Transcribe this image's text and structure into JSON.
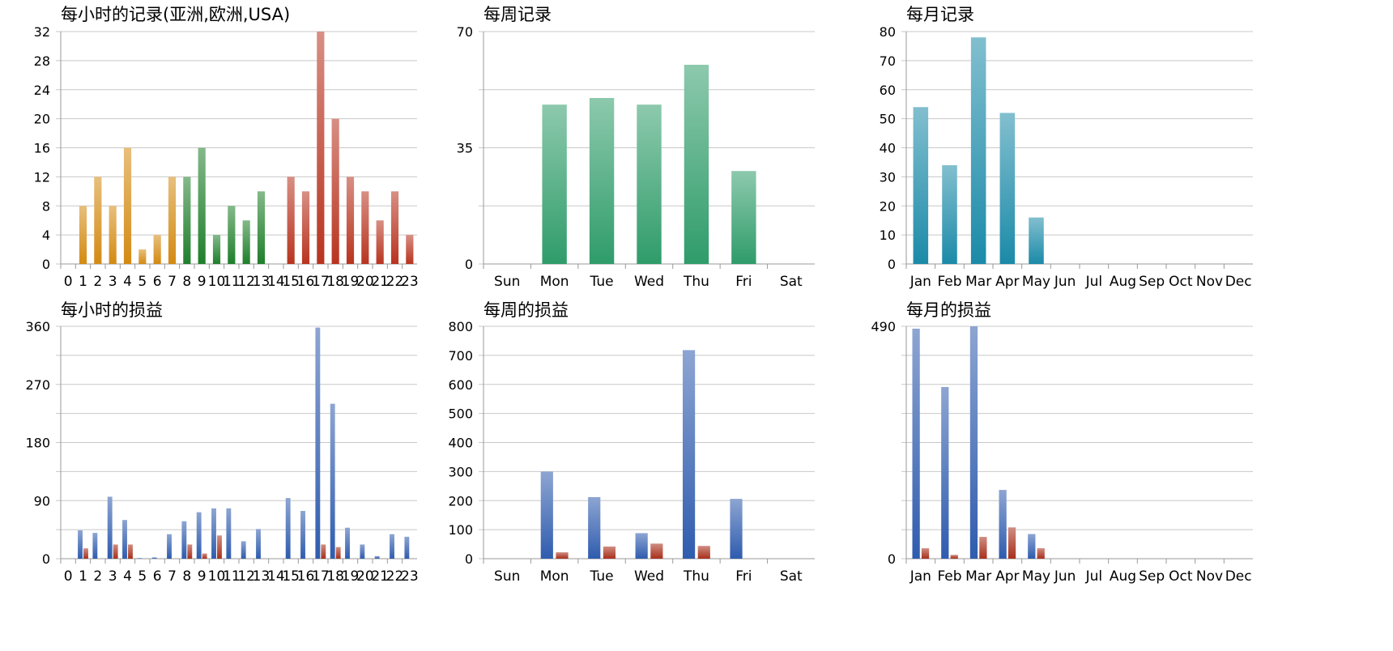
{
  "colors": {
    "orange": "#d38a12",
    "green": "#1f7f2b",
    "red": "#b8341f",
    "teal": "#2f9c6a",
    "cyan": "#1b8aa8",
    "blue": "#2f5cae",
    "dark_red": "#a8301c",
    "grid": "#c8c8c8",
    "axis": "#9a9a9a"
  },
  "chart_data": [
    {
      "type": "bar",
      "title": "每小时的记录(亚洲,欧洲,USA)",
      "categories": [
        "0",
        "1",
        "2",
        "3",
        "4",
        "5",
        "6",
        "7",
        "8",
        "9",
        "10",
        "11",
        "12",
        "13",
        "14",
        "15",
        "16",
        "17",
        "18",
        "19",
        "20",
        "21",
        "22",
        "23"
      ],
      "series": [
        {
          "values": [
            0,
            8,
            12,
            8,
            16,
            2,
            4,
            12,
            12,
            16,
            4,
            8,
            6,
            10,
            0,
            12,
            10,
            32,
            20,
            12,
            10,
            6,
            10,
            4
          ]
        }
      ],
      "bar_colors": [
        "orange",
        "orange",
        "orange",
        "orange",
        "orange",
        "orange",
        "orange",
        "orange",
        "green",
        "green",
        "green",
        "green",
        "green",
        "green",
        "red",
        "red",
        "red",
        "red",
        "red",
        "red",
        "red",
        "red",
        "red",
        "red"
      ],
      "ylim": [
        0,
        32
      ],
      "yticks": [
        "0",
        "4",
        "8",
        "12",
        "16",
        "20",
        "24",
        "28",
        "32"
      ],
      "grid": true
    },
    {
      "type": "bar",
      "title": "每周记录",
      "categories": [
        "Sun",
        "Mon",
        "Tue",
        "Wed",
        "Thu",
        "Fri",
        "Sat"
      ],
      "series": [
        {
          "values": [
            0,
            48,
            50,
            48,
            60,
            28,
            0
          ]
        }
      ],
      "ylim": [
        0,
        70
      ],
      "yticks": [
        "0",
        "35",
        "70"
      ],
      "grid": true
    },
    {
      "type": "bar",
      "title": "每月记录",
      "categories": [
        "Jan",
        "Feb",
        "Mar",
        "Apr",
        "May",
        "Jun",
        "Jul",
        "Aug",
        "Sep",
        "Oct",
        "Nov",
        "Dec"
      ],
      "series": [
        {
          "values": [
            54,
            34,
            78,
            52,
            16,
            0,
            0,
            0,
            0,
            0,
            0,
            0
          ]
        }
      ],
      "ylim": [
        0,
        80
      ],
      "yticks": [
        "0",
        "10",
        "20",
        "30",
        "40",
        "50",
        "60",
        "70",
        "80"
      ],
      "grid": true
    },
    {
      "type": "bar",
      "title": "每小时的损益",
      "categories": [
        "0",
        "1",
        "2",
        "3",
        "4",
        "5",
        "6",
        "7",
        "8",
        "9",
        "10",
        "11",
        "12",
        "13",
        "14",
        "15",
        "16",
        "17",
        "18",
        "19",
        "20",
        "21",
        "22",
        "23"
      ],
      "series": [
        {
          "values": [
            0,
            44,
            40,
            96,
            60,
            1,
            2,
            38,
            58,
            72,
            78,
            78,
            27,
            46,
            0,
            94,
            74,
            358,
            240,
            48,
            22,
            4,
            38,
            34
          ]
        },
        {
          "values": [
            0,
            16,
            0,
            22,
            22,
            0,
            0,
            0,
            22,
            8,
            36,
            0,
            0,
            0,
            0,
            0,
            0,
            22,
            18,
            0,
            0,
            0,
            0,
            0
          ]
        }
      ],
      "ylim": [
        0,
        360
      ],
      "yticks": [
        "0",
        "90",
        "180",
        "270",
        "360"
      ],
      "grid": true
    },
    {
      "type": "bar",
      "title": "每周的损益",
      "categories": [
        "Sun",
        "Mon",
        "Tue",
        "Wed",
        "Thu",
        "Fri",
        "Sat"
      ],
      "series": [
        {
          "values": [
            0,
            300,
            212,
            88,
            718,
            206,
            0
          ]
        },
        {
          "values": [
            0,
            22,
            42,
            52,
            44,
            0,
            0
          ]
        }
      ],
      "ylim": [
        0,
        800
      ],
      "yticks": [
        "0",
        "100",
        "200",
        "300",
        "400",
        "500",
        "600",
        "700",
        "800"
      ],
      "grid": true
    },
    {
      "type": "bar",
      "title": "每月的损益",
      "categories": [
        "Jan",
        "Feb",
        "Mar",
        "Apr",
        "May",
        "Jun",
        "Jul",
        "Aug",
        "Sep",
        "Oct",
        "Nov",
        "Dec"
      ],
      "series": [
        {
          "values": [
            485,
            362,
            490,
            145,
            52,
            0,
            0,
            0,
            0,
            0,
            0,
            0
          ]
        },
        {
          "values": [
            22,
            8,
            46,
            66,
            22,
            0,
            0,
            0,
            0,
            0,
            0,
            0
          ]
        }
      ],
      "ylim": [
        0,
        490
      ],
      "yticks": [
        "0",
        "490"
      ],
      "gridlines": 8,
      "grid": true
    }
  ]
}
